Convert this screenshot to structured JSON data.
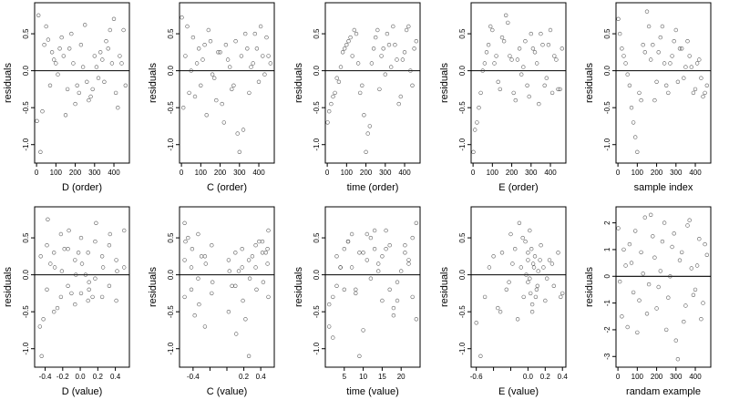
{
  "chart_data": [
    {
      "type": "scatter",
      "xlabel": "D (order)",
      "ylabel": "residuals",
      "xlim": [
        -10,
        480
      ],
      "ylim": [
        -1.25,
        0.92
      ],
      "xticks": [
        0,
        100,
        200,
        300,
        400
      ],
      "xtick_labels": [
        "0",
        "100",
        "200",
        "300",
        "400"
      ],
      "yticks": [
        -1.0,
        -0.5,
        0.0,
        0.5
      ],
      "ytick_labels": [
        "-1.0",
        "-0.5",
        "0.0",
        "0.5"
      ],
      "hline": 0,
      "x": [
        2,
        20,
        40,
        60,
        80,
        100,
        120,
        140,
        160,
        180,
        200,
        220,
        240,
        260,
        280,
        300,
        320,
        340,
        360,
        380,
        400,
        420,
        440,
        460,
        10,
        30,
        50,
        70,
        90,
        110,
        130,
        150,
        170,
        190,
        210,
        230,
        250,
        270,
        290,
        310,
        330,
        350,
        370,
        390,
        410,
        430,
        450
      ],
      "y": [
        -0.68,
        -1.1,
        0.35,
        0.42,
        0.25,
        0.1,
        0.3,
        0.2,
        -0.25,
        0.5,
        -0.45,
        -0.3,
        0.05,
        -0.15,
        -0.35,
        0.2,
        -0.1,
        0.15,
        0.4,
        0.55,
        0.7,
        -0.5,
        0.1,
        -0.2,
        0.75,
        -0.55,
        0.6,
        -0.2,
        0.15,
        -0.05,
        0.45,
        -0.6,
        0.3,
        0.1,
        -0.2,
        0.35,
        0.62,
        -0.4,
        -0.25,
        0.05,
        0.25,
        -0.15,
        0.3,
        0.1,
        -0.3,
        0.2,
        0.55
      ]
    },
    {
      "type": "scatter",
      "xlabel": "C (order)",
      "ylabel": "residuals",
      "xlim": [
        -10,
        480
      ],
      "ylim": [
        -1.25,
        0.92
      ],
      "xticks": [
        0,
        100,
        200,
        300,
        400
      ],
      "xtick_labels": [
        "0",
        "100",
        "200",
        "300",
        "400"
      ],
      "yticks": [
        -1.0,
        -0.5,
        0.0,
        0.5
      ],
      "ytick_labels": [
        "-1.0",
        "-0.5",
        "0.0",
        "0.5"
      ],
      "hline": 0,
      "x": [
        2,
        20,
        40,
        60,
        80,
        100,
        120,
        140,
        160,
        180,
        200,
        220,
        240,
        260,
        280,
        300,
        320,
        340,
        360,
        380,
        400,
        420,
        440,
        460,
        10,
        30,
        50,
        70,
        90,
        110,
        130,
        150,
        170,
        190,
        210,
        230,
        250,
        270,
        290,
        310,
        330,
        350,
        370,
        390,
        410,
        430,
        450
      ],
      "y": [
        0.72,
        0.2,
        -0.3,
        0.45,
        0.1,
        -0.2,
        0.35,
        0.55,
        -0.05,
        -0.4,
        0.25,
        -0.7,
        0.15,
        -0.25,
        0.4,
        -1.1,
        -0.8,
        0.3,
        0.05,
        0.5,
        -0.15,
        0.2,
        0.45,
        0.1,
        -0.5,
        0.6,
        0.0,
        -0.35,
        0.3,
        0.15,
        -0.6,
        0.4,
        -0.1,
        0.25,
        -0.45,
        0.35,
        0.05,
        -0.2,
        -0.85,
        0.2,
        0.5,
        -0.3,
        0.1,
        0.3,
        0.6,
        -0.05,
        0.2
      ]
    },
    {
      "type": "scatter",
      "xlabel": "time (order)",
      "ylabel": "residuals",
      "xlim": [
        -10,
        480
      ],
      "ylim": [
        -1.25,
        0.92
      ],
      "xticks": [
        0,
        100,
        200,
        300,
        400
      ],
      "xtick_labels": [
        "0",
        "100",
        "200",
        "300",
        "400"
      ],
      "yticks": [
        -1.0,
        -0.5,
        0.0,
        0.5
      ],
      "ytick_labels": [
        "-1.0",
        "-0.5",
        "0.0",
        "0.5"
      ],
      "hline": 0,
      "x": [
        2,
        20,
        40,
        60,
        80,
        100,
        120,
        140,
        160,
        180,
        200,
        220,
        240,
        260,
        280,
        300,
        320,
        340,
        360,
        380,
        400,
        420,
        440,
        460,
        10,
        30,
        50,
        70,
        90,
        110,
        130,
        150,
        170,
        190,
        210,
        230,
        250,
        270,
        290,
        310,
        330,
        350,
        370,
        390,
        410,
        430,
        450
      ],
      "y": [
        -0.7,
        -0.45,
        -0.3,
        -0.15,
        0.25,
        0.35,
        0.45,
        0.55,
        0.1,
        -0.2,
        -1.1,
        -0.75,
        0.3,
        0.55,
        0.2,
        -0.05,
        0.35,
        0.6,
        0.15,
        -0.35,
        0.25,
        0.6,
        -0.2,
        0.4,
        -0.55,
        -0.35,
        -0.1,
        0.05,
        0.3,
        0.4,
        0.2,
        0.5,
        -0.3,
        -0.6,
        -0.85,
        0.1,
        0.45,
        -0.25,
        0.3,
        0.5,
        0.05,
        0.35,
        -0.45,
        0.15,
        0.55,
        0.0,
        0.3
      ]
    },
    {
      "type": "scatter",
      "xlabel": "E (order)",
      "ylabel": "residuals",
      "xlim": [
        -10,
        480
      ],
      "ylim": [
        -1.25,
        0.92
      ],
      "xticks": [
        0,
        100,
        200,
        300,
        400
      ],
      "xtick_labels": [
        "0",
        "100",
        "200",
        "300",
        "400"
      ],
      "yticks": [
        -1.0,
        -0.5,
        0.0,
        0.5
      ],
      "ytick_labels": [
        "-1.0",
        "-0.5",
        "0.0",
        "0.5"
      ],
      "hline": 0,
      "x": [
        2,
        20,
        40,
        60,
        80,
        100,
        120,
        140,
        160,
        180,
        200,
        220,
        240,
        260,
        280,
        300,
        320,
        340,
        360,
        380,
        400,
        420,
        440,
        460,
        10,
        30,
        50,
        70,
        90,
        110,
        130,
        150,
        170,
        190,
        210,
        230,
        250,
        270,
        290,
        310,
        330,
        350,
        370,
        390,
        410,
        430,
        450
      ],
      "y": [
        -1.1,
        -0.7,
        -0.3,
        0.1,
        0.35,
        0.55,
        0.2,
        -0.25,
        0.4,
        0.65,
        0.15,
        -0.4,
        0.3,
        0.05,
        -0.2,
        0.5,
        0.25,
        -0.45,
        0.35,
        -0.1,
        0.55,
        0.2,
        -0.25,
        0.3,
        -0.8,
        -0.5,
        0.0,
        0.25,
        0.6,
        0.1,
        -0.15,
        0.45,
        0.75,
        0.2,
        -0.3,
        0.15,
        -0.05,
        0.4,
        -0.35,
        0.3,
        0.1,
        0.5,
        -0.2,
        0.35,
        -0.3,
        0.15,
        -0.25
      ]
    },
    {
      "type": "scatter",
      "xlabel": "sample index",
      "ylabel": "residuals",
      "xlim": [
        -10,
        480
      ],
      "ylim": [
        -1.25,
        0.92
      ],
      "xticks": [
        0,
        100,
        200,
        300,
        400
      ],
      "xtick_labels": [
        "0",
        "100",
        "200",
        "300",
        "400"
      ],
      "yticks": [
        -1.0,
        -0.5,
        0.0,
        0.5
      ],
      "ytick_labels": [
        "-1.0",
        "-0.5",
        "0.0",
        "0.5"
      ],
      "hline": 0,
      "x": [
        2,
        20,
        40,
        60,
        80,
        100,
        120,
        140,
        160,
        180,
        200,
        220,
        240,
        260,
        280,
        300,
        320,
        340,
        360,
        380,
        400,
        420,
        440,
        460,
        10,
        30,
        50,
        70,
        90,
        110,
        130,
        150,
        170,
        190,
        210,
        230,
        250,
        270,
        290,
        310,
        330,
        350,
        370,
        390,
        410,
        430,
        450
      ],
      "y": [
        0.7,
        0.3,
        0.1,
        -0.2,
        -0.7,
        -1.1,
        -0.4,
        0.25,
        0.6,
        0.35,
        -0.15,
        0.45,
        0.1,
        -0.3,
        0.2,
        0.55,
        0.3,
        -0.1,
        0.4,
        0.05,
        -0.25,
        0.15,
        -0.35,
        -0.2,
        0.5,
        0.2,
        -0.05,
        -0.5,
        -0.9,
        -0.3,
        0.35,
        0.8,
        0.15,
        -0.4,
        0.25,
        0.6,
        -0.2,
        0.1,
        0.4,
        -0.15,
        0.3,
        0.05,
        0.2,
        -0.3,
        0.1,
        -0.1,
        -0.3
      ]
    },
    {
      "type": "scatter",
      "xlabel": "D (value)",
      "ylabel": "residuals",
      "xlim": [
        -0.52,
        0.56
      ],
      "ylim": [
        -1.25,
        0.92
      ],
      "xticks": [
        -0.4,
        -0.2,
        0.0,
        0.2,
        0.4
      ],
      "xtick_labels": [
        "-0.4",
        "-0.2",
        "0.0",
        "0.2",
        "0.4"
      ],
      "yticks": [
        -1.0,
        -0.5,
        0.0,
        0.5
      ],
      "ytick_labels": [
        "-1.0",
        "-0.5",
        "0.0",
        "0.5"
      ],
      "hline": 0,
      "x": [
        -0.46,
        -0.45,
        -0.44,
        -0.38,
        -0.38,
        -0.37,
        -0.3,
        -0.3,
        -0.29,
        -0.22,
        -0.22,
        -0.21,
        -0.14,
        -0.14,
        -0.13,
        -0.06,
        -0.06,
        -0.05,
        0.01,
        0.01,
        0.02,
        0.09,
        0.09,
        0.1,
        0.1,
        0.17,
        0.17,
        0.18,
        0.25,
        0.25,
        0.26,
        0.33,
        0.33,
        0.34,
        0.41,
        0.41,
        0.42,
        0.5,
        0.5,
        -0.42,
        -0.34,
        -0.26,
        -0.18,
        -0.1,
        -0.02,
        0.06,
        0.14
      ],
      "y": [
        -0.7,
        0.25,
        -1.1,
        0.4,
        -0.2,
        0.75,
        0.3,
        -0.5,
        0.1,
        0.55,
        -0.3,
        0.05,
        0.35,
        -0.15,
        0.6,
        0.2,
        -0.4,
        0.0,
        0.5,
        -0.25,
        0.15,
        -0.35,
        0.3,
        -0.1,
        -0.2,
        0.45,
        -0.05,
        0.7,
        0.25,
        -0.3,
        0.1,
        0.4,
        -0.15,
        0.55,
        0.2,
        -0.35,
        0.05,
        0.6,
        0.1,
        -0.6,
        0.15,
        -0.45,
        0.35,
        -0.25,
        0.3,
        0.0,
        -0.3
      ]
    },
    {
      "type": "scatter",
      "xlabel": "C (value)",
      "ylabel": "residuals",
      "xlim": [
        -0.56,
        0.56
      ],
      "ylim": [
        -1.25,
        0.92
      ],
      "xticks": [
        -0.4,
        -0.2,
        0.0,
        0.2,
        0.4
      ],
      "xtick_labels": [
        "-0.4",
        "",
        "",
        "0.2",
        "0.4"
      ],
      "yticks": [
        -1.0,
        -0.5,
        0.0,
        0.5
      ],
      "ytick_labels": [
        "-1.0",
        "-0.5",
        "0.0",
        "0.5"
      ],
      "hline": 0,
      "x": [
        -0.5,
        -0.5,
        -0.5,
        -0.49,
        -0.42,
        -0.42,
        -0.41,
        -0.34,
        -0.34,
        -0.33,
        -0.26,
        -0.26,
        -0.25,
        -0.18,
        -0.18,
        -0.17,
        0.02,
        0.02,
        0.03,
        0.1,
        0.1,
        0.11,
        0.18,
        0.18,
        0.19,
        0.26,
        0.26,
        0.27,
        0.34,
        0.34,
        0.35,
        0.42,
        0.42,
        0.43,
        0.48,
        0.48,
        0.49,
        0.49,
        -0.46,
        -0.38,
        -0.3,
        0.06,
        0.14,
        0.22,
        0.3,
        0.38,
        0.46
      ],
      "y": [
        0.7,
        0.2,
        -0.3,
        0.45,
        0.1,
        -0.2,
        0.35,
        0.55,
        -0.05,
        -0.4,
        0.25,
        -0.7,
        0.15,
        -0.25,
        0.4,
        -0.1,
        0.2,
        -0.5,
        0.05,
        0.3,
        -0.15,
        -0.8,
        0.1,
        0.35,
        -0.35,
        -1.1,
        0.2,
        -0.05,
        0.4,
        0.1,
        -0.2,
        0.3,
        0.45,
        -0.1,
        0.15,
        0.35,
        -0.3,
        0.6,
        0.5,
        -0.55,
        0.25,
        -0.15,
        0.05,
        -0.6,
        0.25,
        0.45,
        0.3
      ]
    },
    {
      "type": "scatter",
      "xlabel": "time (value)",
      "ylabel": "residuals",
      "xlim": [
        0,
        25
      ],
      "ylim": [
        -1.25,
        0.92
      ],
      "xticks": [
        5,
        10,
        15,
        20
      ],
      "xtick_labels": [
        "5",
        "10",
        "15",
        "20"
      ],
      "yticks": [
        -1.0,
        -0.5,
        0.0,
        0.5
      ],
      "ytick_labels": [
        "-1.0",
        "-0.5",
        "0.0",
        "0.5"
      ],
      "hline": 0,
      "x": [
        1,
        1,
        2,
        3,
        3,
        4,
        5,
        5,
        6,
        7,
        7,
        8,
        9,
        9,
        10,
        11,
        11,
        12,
        13,
        13,
        14,
        15,
        15,
        16,
        17,
        17,
        18,
        19,
        19,
        20,
        21,
        21,
        22,
        23,
        23,
        24,
        24,
        2,
        4,
        6,
        8,
        10,
        12,
        14,
        16,
        18,
        22
      ],
      "y": [
        -0.7,
        -0.4,
        -0.3,
        -0.15,
        0.25,
        0.1,
        0.35,
        -0.2,
        0.45,
        0.55,
        0.1,
        -0.2,
        -1.1,
        0.3,
        -0.75,
        0.55,
        0.2,
        -0.05,
        0.35,
        0.6,
        0.15,
        -0.35,
        0.25,
        0.6,
        -0.2,
        0.4,
        -0.55,
        -0.35,
        -0.1,
        0.05,
        0.3,
        0.4,
        0.2,
        0.5,
        -0.3,
        -0.6,
        0.7,
        -0.85,
        0.1,
        0.45,
        -0.25,
        0.3,
        0.5,
        0.05,
        0.35,
        -0.45,
        0.15
      ]
    },
    {
      "type": "scatter",
      "xlabel": "E (value)",
      "ylabel": "residuals",
      "xlim": [
        -0.66,
        0.44
      ],
      "ylim": [
        -1.25,
        0.92
      ],
      "xticks": [
        -0.6,
        -0.4,
        -0.2,
        0.0,
        0.2,
        0.4
      ],
      "xtick_labels": [
        "-0.6",
        "",
        "",
        "0.0",
        "0.2",
        "0.4"
      ],
      "yticks": [
        -1.0,
        -0.5,
        0.0,
        0.5
      ],
      "ytick_labels": [
        "-1.0",
        "-0.5",
        "0.0",
        "0.5"
      ],
      "hline": 0,
      "x": [
        -0.6,
        -0.55,
        -0.5,
        -0.45,
        -0.4,
        -0.35,
        -0.3,
        -0.25,
        -0.2,
        -0.15,
        -0.1,
        -0.08,
        -0.05,
        -0.03,
        0.0,
        0.0,
        0.02,
        0.02,
        0.04,
        0.05,
        0.06,
        0.08,
        0.1,
        0.12,
        0.15,
        0.2,
        0.25,
        0.3,
        0.35,
        0.4,
        -0.12,
        -0.06,
        0.03,
        0.07,
        0.11,
        -0.18,
        0.0,
        0.05,
        -0.22,
        0.18,
        -0.02,
        0.09,
        0.14,
        0.22,
        -0.32,
        0.28,
        0.38
      ],
      "y": [
        -0.65,
        -1.1,
        -0.3,
        0.1,
        0.25,
        -0.45,
        0.3,
        -0.2,
        0.55,
        0.35,
        0.7,
        0.1,
        -0.3,
        0.45,
        0.2,
        -0.1,
        0.6,
        -0.05,
        0.35,
        -0.4,
        0.15,
        0.25,
        -0.2,
        0.05,
        0.4,
        -0.35,
        0.2,
        -0.15,
        0.3,
        -0.25,
        -0.6,
        0.5,
        -0.25,
        0.1,
        -0.15,
        0.15,
        0.3,
        -0.5,
        -0.1,
        0.1,
        0.0,
        -0.3,
        0.2,
        -0.05,
        -0.5,
        0.15,
        -0.3
      ]
    },
    {
      "type": "scatter",
      "xlabel": "randam example",
      "ylabel": "residuals",
      "xlim": [
        -10,
        480
      ],
      "ylim": [
        -3.4,
        2.6
      ],
      "xticks": [
        0,
        100,
        200,
        300,
        400
      ],
      "xtick_labels": [
        "0",
        "100",
        "200",
        "300",
        "400"
      ],
      "yticks": [
        -3,
        -2,
        -1,
        0,
        1,
        2
      ],
      "ytick_labels": [
        "-3",
        "-2",
        "-1",
        "0",
        "1",
        "2"
      ],
      "hline": 0,
      "x": [
        2,
        20,
        40,
        60,
        80,
        100,
        120,
        140,
        160,
        180,
        200,
        220,
        240,
        260,
        280,
        300,
        320,
        340,
        360,
        380,
        400,
        420,
        440,
        460,
        10,
        30,
        50,
        70,
        90,
        110,
        130,
        150,
        170,
        190,
        210,
        230,
        250,
        270,
        290,
        310,
        330,
        350,
        370,
        390,
        410,
        430,
        450
      ],
      "y": [
        1.8,
        -1.5,
        0.4,
        1.2,
        -0.6,
        -2.1,
        0.9,
        2.2,
        -0.3,
        1.5,
        -1.2,
        0.2,
        2.0,
        -0.8,
        1.1,
        -2.4,
        0.6,
        -1.7,
        1.9,
        0.3,
        -0.5,
        1.4,
        -1.0,
        0.8,
        -0.2,
        1.0,
        -1.9,
        0.5,
        1.7,
        -0.9,
        0.1,
        -1.4,
        2.3,
        0.7,
        -0.4,
        1.3,
        -2.0,
        0.0,
        1.6,
        -3.1,
        0.9,
        -1.1,
        2.1,
        -0.7,
        0.4,
        -1.6,
        1.2
      ]
    }
  ]
}
